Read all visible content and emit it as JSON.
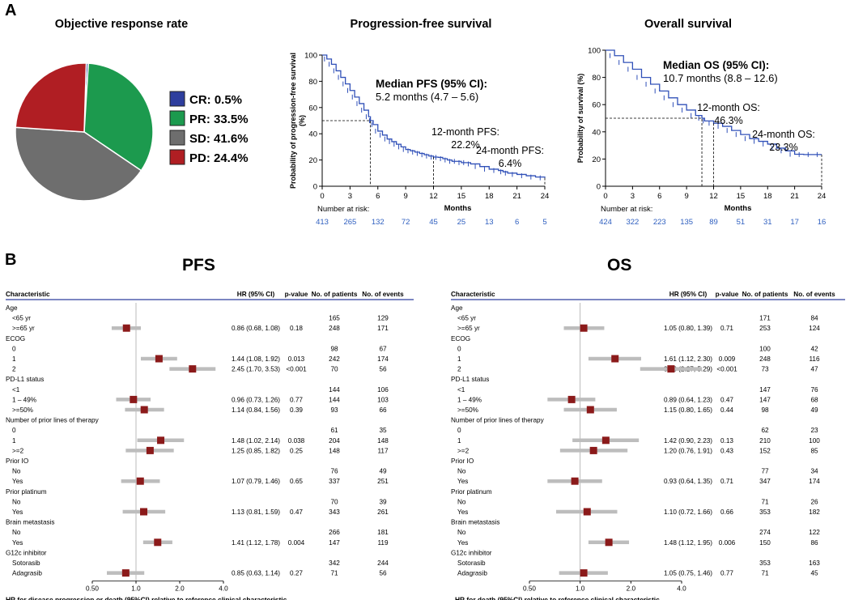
{
  "panel_a": {
    "letter": "A"
  },
  "panel_b": {
    "letter": "B",
    "pfs_title": "PFS",
    "os_title": "OS"
  },
  "chart_data": [
    {
      "type": "pie",
      "title": "Objective response rate",
      "slices": [
        {
          "label": "CR: 0.5%",
          "value": 0.5,
          "color": "#2E3E9E"
        },
        {
          "label": "PR: 33.5%",
          "value": 33.5,
          "color": "#1C9A4E"
        },
        {
          "label": "SD: 41.6%",
          "value": 41.6,
          "color": "#6E6E6E"
        },
        {
          "label": "PD: 24.4%",
          "value": 24.4,
          "color": "#B01E23"
        }
      ]
    },
    {
      "type": "line",
      "title": "Progression-free survival",
      "ylabel": "Probability of progression-free survival (%)",
      "xlabel": "Months",
      "xlim": [
        0,
        24
      ],
      "ylim": [
        0,
        100
      ],
      "xticks": [
        "0",
        "3",
        "6",
        "9",
        "12",
        "15",
        "18",
        "21",
        "24"
      ],
      "yticks": [
        "0",
        "20",
        "40",
        "60",
        "80",
        "100"
      ],
      "color": "#3050B8",
      "series": [
        {
          "x": [
            0,
            0.5,
            1,
            1.5,
            2,
            2.5,
            3,
            3.5,
            4,
            4.5,
            5,
            5.2,
            5.5,
            6,
            6.5,
            7,
            7.5,
            8,
            8.5,
            9,
            9.5,
            10,
            10.5,
            11,
            11.5,
            12,
            12.5,
            13,
            13.5,
            14,
            14.5,
            15,
            15.5,
            16,
            17,
            18,
            19,
            19.5,
            20,
            21,
            22,
            23,
            24
          ],
          "y": [
            100,
            97,
            93,
            88,
            83,
            78,
            73,
            68,
            63,
            58,
            53,
            50,
            47,
            42,
            39,
            36,
            34,
            32,
            30,
            28,
            27,
            26,
            25,
            24,
            23,
            22.2,
            22,
            21,
            20,
            19,
            19,
            18,
            18,
            17,
            15,
            13,
            12,
            11,
            10,
            9,
            8,
            7,
            6.4
          ]
        }
      ],
      "annotations": {
        "median_label": "Median PFS (95% CI)",
        "median_text": "5.2 months (4.7 – 5.6)",
        "median_x": 5.2,
        "median_y": 50,
        "m12_label": "12-month PFS:",
        "m12_value": "22.2%",
        "m12_x": 12,
        "m12_y": 22.2,
        "m24_label": "24-month PFS:",
        "m24_value": "6.4%",
        "m24_x": 24,
        "m24_y": 6.4
      },
      "at_risk_label": "Number at risk:",
      "at_risk": [
        "413",
        "265",
        "132",
        "72",
        "45",
        "25",
        "13",
        "6",
        "5"
      ]
    },
    {
      "type": "line",
      "title": "Overall survival",
      "ylabel": "Probability of survival (%)",
      "xlabel": "Months",
      "xlim": [
        0,
        24
      ],
      "ylim": [
        0,
        100
      ],
      "xticks": [
        "0",
        "3",
        "6",
        "9",
        "12",
        "15",
        "18",
        "21",
        "24"
      ],
      "yticks": [
        "0",
        "20",
        "40",
        "60",
        "80",
        "100"
      ],
      "color": "#3050B8",
      "series": [
        {
          "x": [
            0,
            1,
            2,
            3,
            4,
            5,
            6,
            7,
            8,
            9,
            10,
            10.7,
            11,
            12,
            13,
            14,
            15,
            16,
            17,
            18,
            19,
            20,
            21,
            22,
            23,
            24
          ],
          "y": [
            100,
            96,
            91,
            86,
            80,
            75,
            70,
            65,
            60,
            56,
            52,
            50,
            48,
            46.3,
            44,
            41,
            38,
            35,
            33,
            31,
            28,
            26,
            23.5,
            23.3,
            23.3,
            23.3
          ]
        }
      ],
      "annotations": {
        "median_label": "Median OS (95% CI)",
        "median_text": "10.7 months (8.8 – 12.6)",
        "median_x": 10.7,
        "median_y": 50,
        "m12_label": "12-month OS:",
        "m12_value": "46.3%",
        "m12_x": 12,
        "m12_y": 46.3,
        "m24_label": "24-month OS:",
        "m24_value": "23.3%",
        "m24_x": 24,
        "m24_y": 23.3
      },
      "at_risk_label": "Number at risk:",
      "at_risk": [
        "424",
        "322",
        "223",
        "135",
        "89",
        "51",
        "31",
        "17",
        "16"
      ]
    },
    {
      "type": "forest",
      "title": "PFS",
      "xlabel": "HR for disease progression or death (95%CI)  relative to reference clinical characteristic",
      "xscale": "log",
      "xlim": [
        0.5,
        4.0
      ],
      "xticks": [
        "0.50",
        "1.0",
        "2.0",
        "4.0"
      ],
      "headers": [
        "Characteristic",
        "HR (95% CI)",
        "p-value",
        "No. of patients",
        "No. of events"
      ],
      "rows": [
        {
          "label": "Age",
          "indent": false,
          "hr": "",
          "p": "",
          "n": "",
          "e": ""
        },
        {
          "label": "<65 yr",
          "indent": true,
          "hr": "",
          "p": "",
          "n": "165",
          "e": "129"
        },
        {
          "label": ">=65 yr",
          "indent": true,
          "hr": "0.86 (0.68, 1.08)",
          "p": "0.18",
          "n": "248",
          "e": "171",
          "est": 0.86,
          "lo": 0.68,
          "hi": 1.08
        },
        {
          "label": "ECOG",
          "indent": false,
          "hr": "",
          "p": "",
          "n": "",
          "e": ""
        },
        {
          "label": "0",
          "indent": true,
          "hr": "",
          "p": "",
          "n": "98",
          "e": "67"
        },
        {
          "label": "1",
          "indent": true,
          "hr": "1.44 (1.08, 1.92)",
          "p": "0.013",
          "n": "242",
          "e": "174",
          "est": 1.44,
          "lo": 1.08,
          "hi": 1.92
        },
        {
          "label": "2",
          "indent": true,
          "hr": "2.45 (1.70, 3.53)",
          "p": "<0.001",
          "n": "70",
          "e": "56",
          "est": 2.45,
          "lo": 1.7,
          "hi": 3.53
        },
        {
          "label": "PD-L1 status",
          "indent": false,
          "hr": "",
          "p": "",
          "n": "",
          "e": ""
        },
        {
          "label": "<1",
          "indent": true,
          "hr": "",
          "p": "",
          "n": "144",
          "e": "106"
        },
        {
          "label": "1 – 49%",
          "indent": true,
          "hr": "0.96 (0.73, 1.26)",
          "p": "0.77",
          "n": "144",
          "e": "103",
          "est": 0.96,
          "lo": 0.73,
          "hi": 1.26
        },
        {
          "label": ">=50%",
          "indent": true,
          "hr": "1.14 (0.84, 1.56)",
          "p": "0.39",
          "n": "93",
          "e": "66",
          "est": 1.14,
          "lo": 0.84,
          "hi": 1.56
        },
        {
          "label": "Number of prior lines of therapy",
          "indent": false,
          "hr": "",
          "p": "",
          "n": "",
          "e": ""
        },
        {
          "label": "0",
          "indent": true,
          "hr": "",
          "p": "",
          "n": "61",
          "e": "35"
        },
        {
          "label": "1",
          "indent": true,
          "hr": "1.48 (1.02, 2.14)",
          "p": "0.038",
          "n": "204",
          "e": "148",
          "est": 1.48,
          "lo": 1.02,
          "hi": 2.14
        },
        {
          "label": ">=2",
          "indent": true,
          "hr": "1.25 (0.85, 1.82)",
          "p": "0.25",
          "n": "148",
          "e": "117",
          "est": 1.25,
          "lo": 0.85,
          "hi": 1.82
        },
        {
          "label": "Prior IO",
          "indent": false,
          "hr": "",
          "p": "",
          "n": "",
          "e": ""
        },
        {
          "label": "No",
          "indent": true,
          "hr": "",
          "p": "",
          "n": "76",
          "e": "49"
        },
        {
          "label": "Yes",
          "indent": true,
          "hr": "1.07 (0.79, 1.46)",
          "p": "0.65",
          "n": "337",
          "e": "251",
          "est": 1.07,
          "lo": 0.79,
          "hi": 1.46
        },
        {
          "label": "Prior platinum",
          "indent": false,
          "hr": "",
          "p": "",
          "n": "",
          "e": ""
        },
        {
          "label": "No",
          "indent": true,
          "hr": "",
          "p": "",
          "n": "70",
          "e": "39"
        },
        {
          "label": "Yes",
          "indent": true,
          "hr": "1.13 (0.81, 1.59)",
          "p": "0.47",
          "n": "343",
          "e": "261",
          "est": 1.13,
          "lo": 0.81,
          "hi": 1.59
        },
        {
          "label": "Brain metastasis",
          "indent": false,
          "hr": "",
          "p": "",
          "n": "",
          "e": ""
        },
        {
          "label": "No",
          "indent": true,
          "hr": "",
          "p": "",
          "n": "266",
          "e": "181"
        },
        {
          "label": "Yes",
          "indent": true,
          "hr": "1.41 (1.12, 1.78)",
          "p": "0.004",
          "n": "147",
          "e": "119",
          "est": 1.41,
          "lo": 1.12,
          "hi": 1.78
        },
        {
          "label": "G12c inhibitor",
          "indent": false,
          "hr": "",
          "p": "",
          "n": "",
          "e": ""
        },
        {
          "label": "Sotorasib",
          "indent": true,
          "hr": "",
          "p": "",
          "n": "342",
          "e": "244"
        },
        {
          "label": "Adagrasib",
          "indent": true,
          "hr": "0.85 (0.63, 1.14)",
          "p": "0.27",
          "n": "71",
          "e": "56",
          "est": 0.85,
          "lo": 0.63,
          "hi": 1.14
        }
      ]
    },
    {
      "type": "forest",
      "title": "OS",
      "xlabel": "HR for death (95%CI)  relative to reference clinical characteristic",
      "xscale": "log",
      "xlim": [
        0.5,
        4.0
      ],
      "xticks": [
        "0.50",
        "1.0",
        "2.0",
        "4.0"
      ],
      "headers": [
        "Characteristic",
        "HR (95% CI)",
        "p-value",
        "No. of patients",
        "No. of events"
      ],
      "rows": [
        {
          "label": "Age",
          "indent": false,
          "hr": "",
          "p": "",
          "n": "",
          "e": ""
        },
        {
          "label": "<65 yr",
          "indent": true,
          "hr": "",
          "p": "",
          "n": "171",
          "e": "84"
        },
        {
          "label": ">=65 yr",
          "indent": true,
          "hr": "1.05 (0.80, 1.39)",
          "p": "0.71",
          "n": "253",
          "e": "124",
          "est": 1.05,
          "lo": 0.8,
          "hi": 1.39
        },
        {
          "label": "ECOG",
          "indent": false,
          "hr": "",
          "p": "",
          "n": "",
          "e": ""
        },
        {
          "label": "0",
          "indent": true,
          "hr": "",
          "p": "",
          "n": "100",
          "e": "42"
        },
        {
          "label": "1",
          "indent": true,
          "hr": "1.61 (1.12, 2.30)",
          "p": "0.009",
          "n": "248",
          "e": "116",
          "est": 1.61,
          "lo": 1.12,
          "hi": 2.3
        },
        {
          "label": "2",
          "indent": true,
          "hr": "3.46 (2.27, 5.29)",
          "p": "<0.001",
          "n": "73",
          "e": "47",
          "est": 3.46,
          "lo": 2.27,
          "hi": 5.29
        },
        {
          "label": "PD-L1 status",
          "indent": false,
          "hr": "",
          "p": "",
          "n": "",
          "e": ""
        },
        {
          "label": "<1",
          "indent": true,
          "hr": "",
          "p": "",
          "n": "147",
          "e": "76"
        },
        {
          "label": "1 – 49%",
          "indent": true,
          "hr": "0.89 (0.64, 1.23)",
          "p": "0.47",
          "n": "147",
          "e": "68",
          "est": 0.89,
          "lo": 0.64,
          "hi": 1.23
        },
        {
          "label": ">=50%",
          "indent": true,
          "hr": "1.15 (0.80, 1.65)",
          "p": "0.44",
          "n": "98",
          "e": "49",
          "est": 1.15,
          "lo": 0.8,
          "hi": 1.65
        },
        {
          "label": "Number of prior lines of therapy",
          "indent": false,
          "hr": "",
          "p": "",
          "n": "",
          "e": ""
        },
        {
          "label": "0",
          "indent": true,
          "hr": "",
          "p": "",
          "n": "62",
          "e": "23"
        },
        {
          "label": "1",
          "indent": true,
          "hr": "1.42 (0.90, 2.23)",
          "p": "0.13",
          "n": "210",
          "e": "100",
          "est": 1.42,
          "lo": 0.9,
          "hi": 2.23
        },
        {
          "label": ">=2",
          "indent": true,
          "hr": "1.20 (0.76, 1.91)",
          "p": "0.43",
          "n": "152",
          "e": "85",
          "est": 1.2,
          "lo": 0.76,
          "hi": 1.91
        },
        {
          "label": "Prior IO",
          "indent": false,
          "hr": "",
          "p": "",
          "n": "",
          "e": ""
        },
        {
          "label": "No",
          "indent": true,
          "hr": "",
          "p": "",
          "n": "77",
          "e": "34"
        },
        {
          "label": "Yes",
          "indent": true,
          "hr": "0.93 (0.64, 1.35)",
          "p": "0.71",
          "n": "347",
          "e": "174",
          "est": 0.93,
          "lo": 0.64,
          "hi": 1.35
        },
        {
          "label": "Prior platinum",
          "indent": false,
          "hr": "",
          "p": "",
          "n": "",
          "e": ""
        },
        {
          "label": "No",
          "indent": true,
          "hr": "",
          "p": "",
          "n": "71",
          "e": "26"
        },
        {
          "label": "Yes",
          "indent": true,
          "hr": "1.10 (0.72, 1.66)",
          "p": "0.66",
          "n": "353",
          "e": "182",
          "est": 1.1,
          "lo": 0.72,
          "hi": 1.66
        },
        {
          "label": "Brain metastasis",
          "indent": false,
          "hr": "",
          "p": "",
          "n": "",
          "e": ""
        },
        {
          "label": "No",
          "indent": true,
          "hr": "",
          "p": "",
          "n": "274",
          "e": "122"
        },
        {
          "label": "Yes",
          "indent": true,
          "hr": "1.48 (1.12, 1.95)",
          "p": "0.006",
          "n": "150",
          "e": "86",
          "est": 1.48,
          "lo": 1.12,
          "hi": 1.95
        },
        {
          "label": "G12c inhibitor",
          "indent": false,
          "hr": "",
          "p": "",
          "n": "",
          "e": ""
        },
        {
          "label": "Sotorasib",
          "indent": true,
          "hr": "",
          "p": "",
          "n": "353",
          "e": "163"
        },
        {
          "label": "Adagrasib",
          "indent": true,
          "hr": "1.05 (0.75, 1.46)",
          "p": "0.77",
          "n": "71",
          "e": "45",
          "est": 1.05,
          "lo": 0.75,
          "hi": 1.46
        }
      ]
    }
  ]
}
